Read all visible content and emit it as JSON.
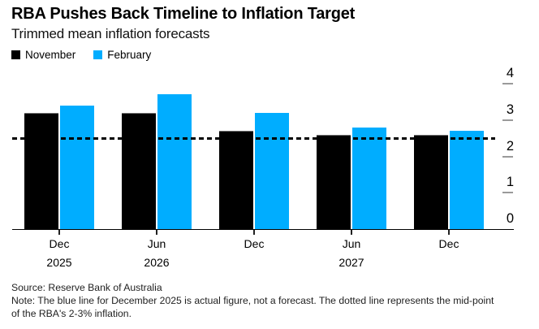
{
  "header": {
    "title": "RBA Pushes Back Timeline to Inflation Target",
    "subtitle": "Trimmed mean inflation forecasts"
  },
  "legend": [
    {
      "label": "November",
      "color": "#000000"
    },
    {
      "label": "February",
      "color": "#00ADFF"
    }
  ],
  "chart_data": {
    "type": "bar",
    "title": "RBA Pushes Back Timeline to Inflation Target",
    "subtitle": "Trimmed mean inflation forecasts",
    "categories": [
      "Dec 2025",
      "Jun 2026",
      "Dec 2026",
      "Jun 2027",
      "Dec 2027"
    ],
    "category_labels": [
      [
        "Dec",
        "2025"
      ],
      [
        "Jun",
        "2026"
      ],
      [
        "Dec",
        ""
      ],
      [
        "Jun",
        "2027"
      ],
      [
        "Dec",
        ""
      ]
    ],
    "series": [
      {
        "name": "November",
        "color": "#000000",
        "values": [
          3.2,
          3.2,
          2.7,
          2.6,
          2.6
        ]
      },
      {
        "name": "February",
        "color": "#00ADFF",
        "values": [
          3.4,
          3.7,
          3.2,
          2.8,
          2.7
        ]
      }
    ],
    "ylim": [
      0,
      4
    ],
    "yticks": [
      0,
      1,
      2,
      3,
      4
    ],
    "reference_line": {
      "value": 2.5,
      "style": "dashed",
      "color": "#000000",
      "meaning": "mid-point of RBA 2-3% target band"
    },
    "legend_position": "top-left",
    "grid": false,
    "axis_side": "right"
  },
  "footer": {
    "source": "Source: Reserve Bank of Australia",
    "note": "Note: The blue line for December 2025 is actual figure, not a forecast. The dotted line represents the mid-point\nof the RBA's 2-3% inflation."
  }
}
